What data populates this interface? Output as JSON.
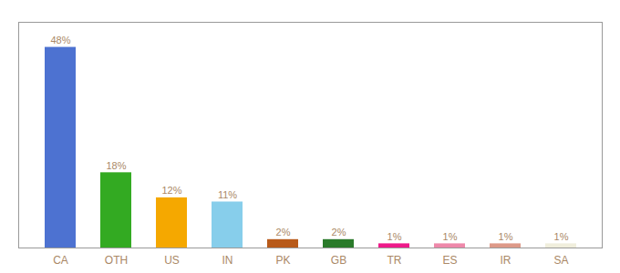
{
  "chart_data": {
    "type": "bar",
    "categories": [
      "CA",
      "OTH",
      "US",
      "IN",
      "PK",
      "GB",
      "TR",
      "ES",
      "IR",
      "SA"
    ],
    "values": [
      48,
      18,
      12,
      11,
      2,
      2,
      1,
      1,
      1,
      1
    ],
    "colors": [
      "#4d72d1",
      "#33aa22",
      "#f5a800",
      "#87ceeb",
      "#b85a1a",
      "#2a7a2a",
      "#ee1a8a",
      "#ee88aa",
      "#dd9988",
      "#f0eedc"
    ],
    "value_labels": [
      "48%",
      "18%",
      "12%",
      "11%",
      "2%",
      "2%",
      "1%",
      "1%",
      "1%",
      "1%"
    ],
    "data_labels": true,
    "ylim": [
      0,
      54
    ],
    "tick_labels": "x",
    "grid": false
  }
}
